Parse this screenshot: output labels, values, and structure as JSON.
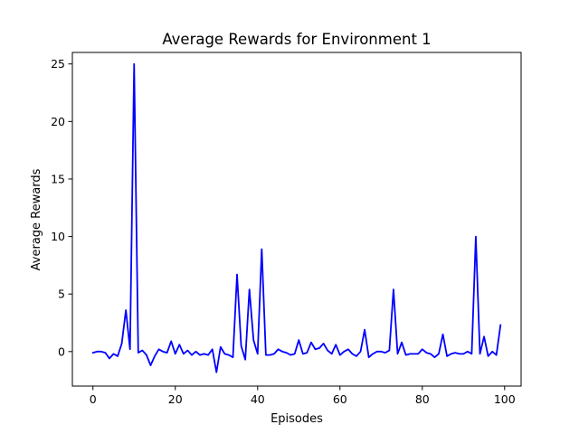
{
  "chart_data": {
    "type": "line",
    "title": "Average Rewards for Environment 1",
    "xlabel": "Episodes",
    "ylabel": "Average Rewards",
    "xlim": [
      -5,
      104
    ],
    "ylim": [
      -3,
      26
    ],
    "xticks": [
      0,
      20,
      40,
      60,
      80,
      100
    ],
    "yticks": [
      0,
      5,
      10,
      15,
      20,
      25
    ],
    "grid": false,
    "legend": "none",
    "series": [
      {
        "color": "#0000ff",
        "x": [
          0,
          1,
          2,
          3,
          4,
          5,
          6,
          7,
          8,
          9,
          10,
          11,
          12,
          13,
          14,
          15,
          16,
          17,
          18,
          19,
          20,
          21,
          22,
          23,
          24,
          25,
          26,
          27,
          28,
          29,
          30,
          31,
          32,
          33,
          34,
          35,
          36,
          37,
          38,
          39,
          40,
          41,
          42,
          43,
          44,
          45,
          46,
          47,
          48,
          49,
          50,
          51,
          52,
          53,
          54,
          55,
          56,
          57,
          58,
          59,
          60,
          61,
          62,
          63,
          64,
          65,
          66,
          67,
          68,
          69,
          70,
          71,
          72,
          73,
          74,
          75,
          76,
          77,
          78,
          79,
          80,
          81,
          82,
          83,
          84,
          85,
          86,
          87,
          88,
          89,
          90,
          91,
          92,
          93,
          94,
          95,
          96,
          97,
          98,
          99
        ],
        "y": [
          -0.1,
          0.0,
          0.0,
          -0.1,
          -0.6,
          -0.2,
          -0.4,
          0.7,
          3.6,
          0.2,
          25.0,
          -0.1,
          0.1,
          -0.3,
          -1.2,
          -0.4,
          0.2,
          0.0,
          -0.1,
          0.9,
          -0.2,
          0.6,
          -0.2,
          0.1,
          -0.3,
          0.0,
          -0.3,
          -0.2,
          -0.3,
          0.2,
          -1.8,
          0.4,
          -0.2,
          -0.3,
          -0.5,
          6.7,
          0.5,
          -0.7,
          5.4,
          1.0,
          -0.2,
          8.9,
          -0.3,
          -0.3,
          -0.2,
          0.2,
          0.0,
          -0.1,
          -0.3,
          -0.2,
          1.0,
          -0.2,
          -0.1,
          0.8,
          0.2,
          0.3,
          0.7,
          0.1,
          -0.2,
          0.6,
          -0.3,
          0.0,
          0.2,
          -0.2,
          -0.4,
          0.0,
          1.9,
          -0.5,
          -0.2,
          0.0,
          0.0,
          -0.1,
          0.1,
          5.4,
          -0.2,
          0.8,
          -0.3,
          -0.2,
          -0.2,
          -0.2,
          0.2,
          -0.1,
          -0.2,
          -0.5,
          -0.2,
          1.5,
          -0.4,
          -0.2,
          -0.1,
          -0.2,
          -0.2,
          0.0,
          -0.2,
          10.0,
          -0.2,
          1.3,
          -0.4,
          0.0,
          -0.3,
          2.3
        ]
      }
    ]
  }
}
